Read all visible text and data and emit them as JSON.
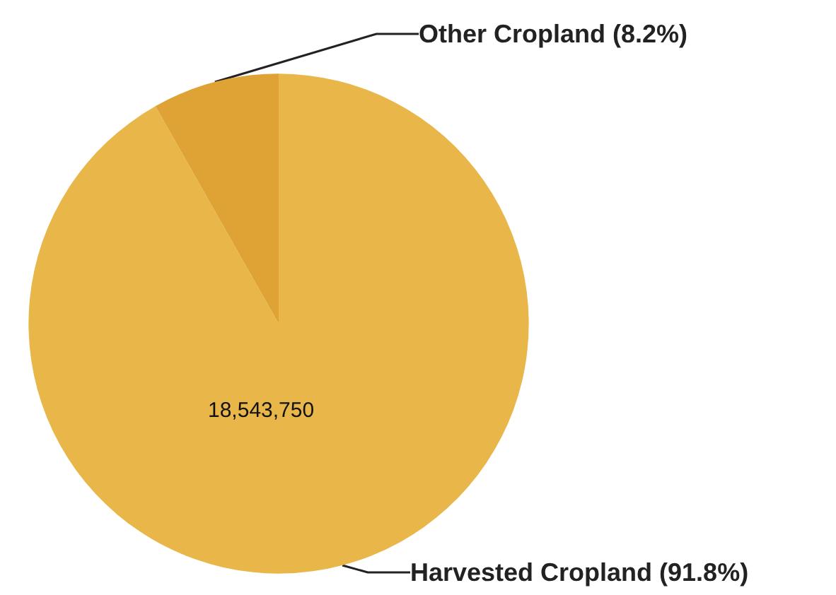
{
  "chart_data": {
    "type": "pie",
    "categories": [
      "Harvested Cropland",
      "Other Cropland"
    ],
    "values": [
      91.8,
      8.2
    ],
    "value_labels": [
      "(91.8%)",
      "(8.2%)"
    ],
    "colors": [
      "#e9b649",
      "#dea235"
    ],
    "annotations": [
      "18,543,750"
    ],
    "legend": false
  }
}
